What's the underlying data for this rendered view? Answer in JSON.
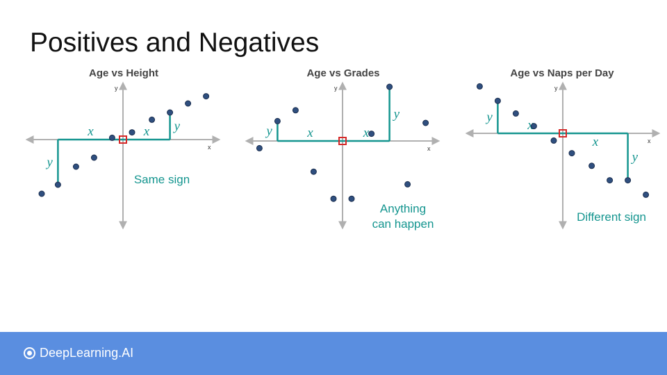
{
  "slide": {
    "title": "Positives and Negatives"
  },
  "footer": {
    "brand": "DeepLearning.AI"
  },
  "colors": {
    "accent": "#14958f",
    "axis": "#b0b0b0",
    "point": "#2f4f7f",
    "origin": "#d62828"
  },
  "icons": {
    "brand": "deeplearning-logo-icon"
  },
  "chart_data": [
    {
      "type": "scatter",
      "title": "Age vs Height",
      "xlabel": "x",
      "ylabel": "y",
      "points": [
        [
          -4.5,
          -3.0
        ],
        [
          -3.6,
          -2.5
        ],
        [
          -2.6,
          -1.5
        ],
        [
          -1.6,
          -1.0
        ],
        [
          -0.6,
          0.1
        ],
        [
          0.5,
          0.4
        ],
        [
          1.6,
          1.1
        ],
        [
          2.6,
          1.5
        ],
        [
          3.6,
          2.0
        ],
        [
          4.6,
          2.4
        ]
      ],
      "guides": [
        {
          "point": [
            -3.6,
            -2.5
          ],
          "x_label": "x",
          "y_label": "y"
        },
        {
          "point": [
            2.6,
            1.5
          ],
          "x_label": "x",
          "y_label": "y"
        }
      ],
      "annotation": "Same sign"
    },
    {
      "type": "scatter",
      "title": "Age vs Grades",
      "xlabel": "x",
      "ylabel": "y",
      "points": [
        [
          -4.6,
          -0.4
        ],
        [
          -3.6,
          1.1
        ],
        [
          -2.6,
          1.7
        ],
        [
          -1.6,
          -1.7
        ],
        [
          -0.5,
          -3.2
        ],
        [
          0.5,
          -3.2
        ],
        [
          1.6,
          0.4
        ],
        [
          2.6,
          3.0
        ],
        [
          3.6,
          -2.4
        ],
        [
          4.6,
          1.0
        ]
      ],
      "guides": [
        {
          "point": [
            -3.6,
            1.1
          ],
          "x_label": "x",
          "y_label": "y"
        },
        {
          "point": [
            2.6,
            3.0
          ],
          "x_label": "x",
          "y_label": "y"
        }
      ],
      "annotation": "Anything\ncan happen"
    },
    {
      "type": "scatter",
      "title": "Age vs Naps per Day",
      "xlabel": "x",
      "ylabel": "y",
      "points": [
        [
          -4.6,
          2.6
        ],
        [
          -3.6,
          1.8
        ],
        [
          -2.6,
          1.1
        ],
        [
          -1.6,
          0.4
        ],
        [
          -0.5,
          -0.4
        ],
        [
          0.5,
          -1.1
        ],
        [
          1.6,
          -1.8
        ],
        [
          2.6,
          -2.6
        ],
        [
          3.6,
          -2.6
        ],
        [
          4.6,
          -3.4
        ]
      ],
      "guides": [
        {
          "point": [
            -3.6,
            1.8
          ],
          "x_label": "x",
          "y_label": "y"
        },
        {
          "point": [
            3.6,
            -2.6
          ],
          "x_label": "x",
          "y_label": "y"
        }
      ],
      "annotation": "Different sign"
    }
  ]
}
